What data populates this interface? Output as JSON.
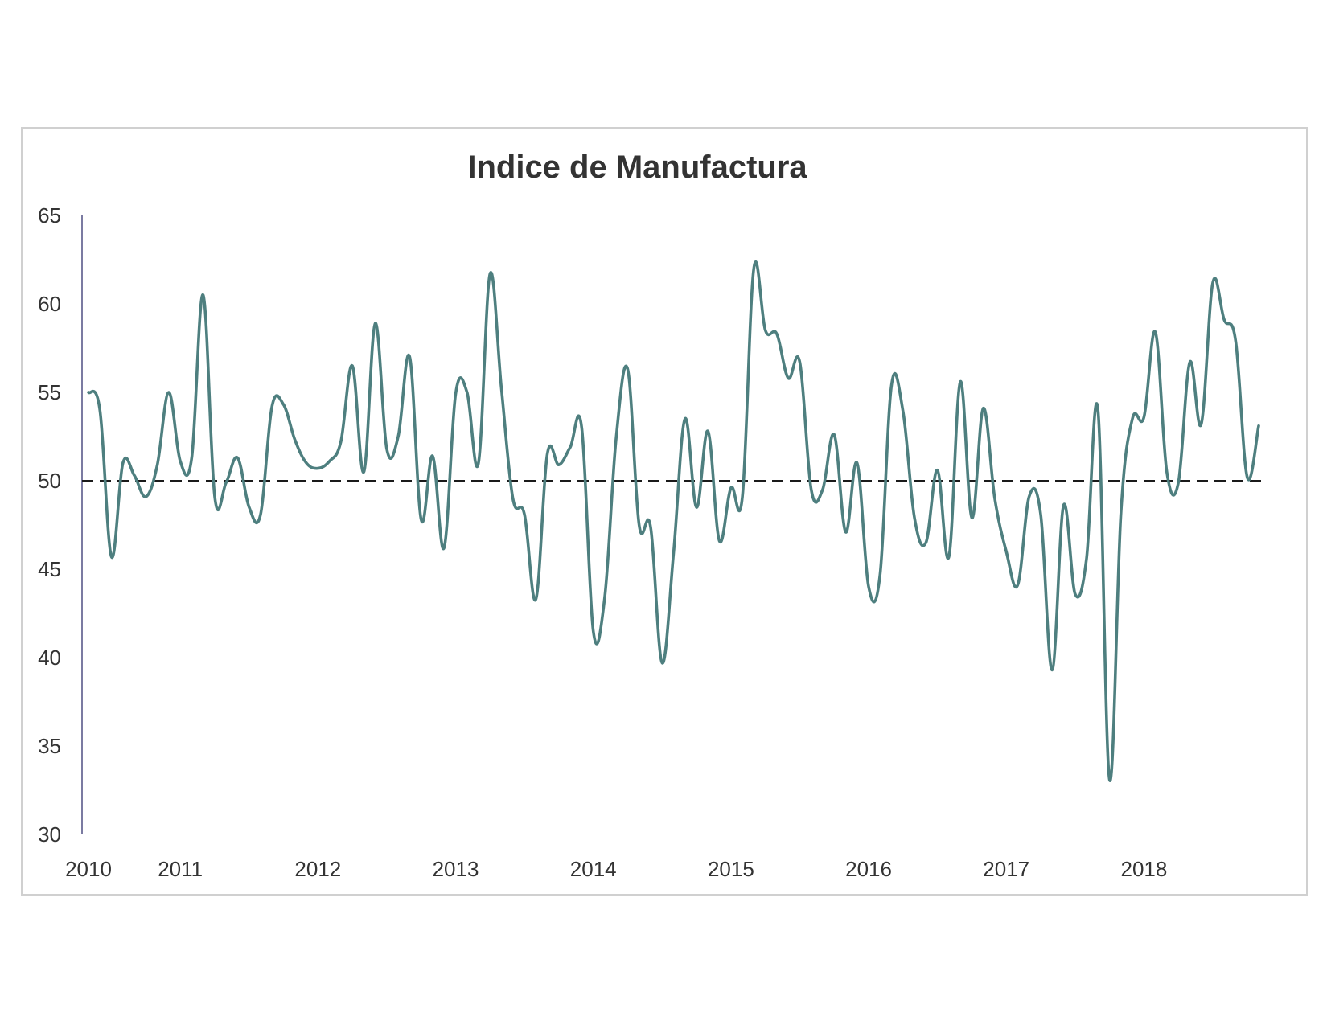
{
  "chart_data": {
    "type": "line",
    "title": "Indice de Manufactura",
    "xlabel": "",
    "ylabel": "",
    "ylim": [
      30,
      65
    ],
    "yticks": [
      30,
      35,
      40,
      45,
      50,
      55,
      60,
      65
    ],
    "xticks": [
      {
        "label": "2010",
        "x": 2010.0
      },
      {
        "label": "2011",
        "x": 2010.667
      },
      {
        "label": "2012",
        "x": 2011.667
      },
      {
        "label": "2013",
        "x": 2012.667
      },
      {
        "label": "2014",
        "x": 2013.667
      },
      {
        "label": "2015",
        "x": 2014.667
      },
      {
        "label": "2016",
        "x": 2015.667
      },
      {
        "label": "2017",
        "x": 2016.667
      },
      {
        "label": "2018",
        "x": 2017.667
      }
    ],
    "xlim": [
      2010.0,
      2018.5
    ],
    "reference_line": {
      "y": 50,
      "style": "dashed",
      "color": "#1a1a1a"
    },
    "grid": false,
    "legend": "none",
    "series": [
      {
        "color": "#4e7f7f",
        "points": [
          [
            2010.0,
            55.0
          ],
          [
            2010.083,
            54.0
          ],
          [
            2010.167,
            45.7
          ],
          [
            2010.25,
            51.0
          ],
          [
            2010.333,
            50.3
          ],
          [
            2010.417,
            49.1
          ],
          [
            2010.5,
            50.9
          ],
          [
            2010.583,
            55.0
          ],
          [
            2010.667,
            51.1
          ],
          [
            2010.75,
            51.3
          ],
          [
            2010.833,
            60.5
          ],
          [
            2010.917,
            49.1
          ],
          [
            2011.0,
            49.9
          ],
          [
            2011.083,
            51.3
          ],
          [
            2011.167,
            48.5
          ],
          [
            2011.25,
            48.1
          ],
          [
            2011.333,
            54.2
          ],
          [
            2011.417,
            54.3
          ],
          [
            2011.5,
            52.3
          ],
          [
            2011.583,
            51.0
          ],
          [
            2011.667,
            50.7
          ],
          [
            2011.75,
            51.1
          ],
          [
            2011.833,
            52.2
          ],
          [
            2011.917,
            56.5
          ],
          [
            2012.0,
            50.5
          ],
          [
            2012.083,
            58.9
          ],
          [
            2012.167,
            51.8
          ],
          [
            2012.25,
            52.5
          ],
          [
            2012.333,
            57.0
          ],
          [
            2012.417,
            47.8
          ],
          [
            2012.5,
            51.4
          ],
          [
            2012.583,
            46.2
          ],
          [
            2012.667,
            54.9
          ],
          [
            2012.75,
            55.0
          ],
          [
            2012.833,
            51.0
          ],
          [
            2012.917,
            61.7
          ],
          [
            2013.0,
            55.2
          ],
          [
            2013.083,
            49.0
          ],
          [
            2013.167,
            48.1
          ],
          [
            2013.25,
            43.3
          ],
          [
            2013.333,
            51.5
          ],
          [
            2013.417,
            50.9
          ],
          [
            2013.5,
            51.9
          ],
          [
            2013.583,
            53.0
          ],
          [
            2013.667,
            41.5
          ],
          [
            2013.75,
            43.4
          ],
          [
            2013.833,
            52.4
          ],
          [
            2013.917,
            56.3
          ],
          [
            2014.0,
            47.5
          ],
          [
            2014.083,
            47.4
          ],
          [
            2014.167,
            39.7
          ],
          [
            2014.25,
            45.9
          ],
          [
            2014.333,
            53.5
          ],
          [
            2014.417,
            48.5
          ],
          [
            2014.5,
            52.8
          ],
          [
            2014.583,
            46.6
          ],
          [
            2014.667,
            49.6
          ],
          [
            2014.75,
            49.1
          ],
          [
            2014.833,
            62.0
          ],
          [
            2014.917,
            58.5
          ],
          [
            2015.0,
            58.3
          ],
          [
            2015.083,
            55.8
          ],
          [
            2015.167,
            56.7
          ],
          [
            2015.25,
            49.5
          ],
          [
            2015.333,
            49.5
          ],
          [
            2015.417,
            52.6
          ],
          [
            2015.5,
            47.1
          ],
          [
            2015.583,
            51.0
          ],
          [
            2015.667,
            44.0
          ],
          [
            2015.75,
            44.7
          ],
          [
            2015.833,
            55.4
          ],
          [
            2015.917,
            53.9
          ],
          [
            2016.0,
            47.9
          ],
          [
            2016.083,
            46.5
          ],
          [
            2016.167,
            50.6
          ],
          [
            2016.25,
            45.7
          ],
          [
            2016.333,
            55.6
          ],
          [
            2016.417,
            47.9
          ],
          [
            2016.5,
            54.1
          ],
          [
            2016.583,
            49.0
          ],
          [
            2016.667,
            46.0
          ],
          [
            2016.75,
            44.1
          ],
          [
            2016.833,
            49.1
          ],
          [
            2016.917,
            48.1
          ],
          [
            2017.0,
            39.3
          ],
          [
            2017.083,
            48.6
          ],
          [
            2017.167,
            43.6
          ],
          [
            2017.25,
            45.6
          ],
          [
            2017.333,
            54.0
          ],
          [
            2017.417,
            33.1
          ],
          [
            2017.5,
            48.2
          ],
          [
            2017.583,
            53.5
          ],
          [
            2017.667,
            53.6
          ],
          [
            2017.75,
            58.4
          ],
          [
            2017.833,
            50.5
          ],
          [
            2017.917,
            49.9
          ],
          [
            2018.0,
            56.7
          ],
          [
            2018.083,
            53.2
          ],
          [
            2018.167,
            61.2
          ],
          [
            2018.25,
            59.1
          ],
          [
            2018.333,
            57.9
          ],
          [
            2018.417,
            50.2
          ],
          [
            2018.5,
            53.1
          ]
        ]
      }
    ]
  }
}
